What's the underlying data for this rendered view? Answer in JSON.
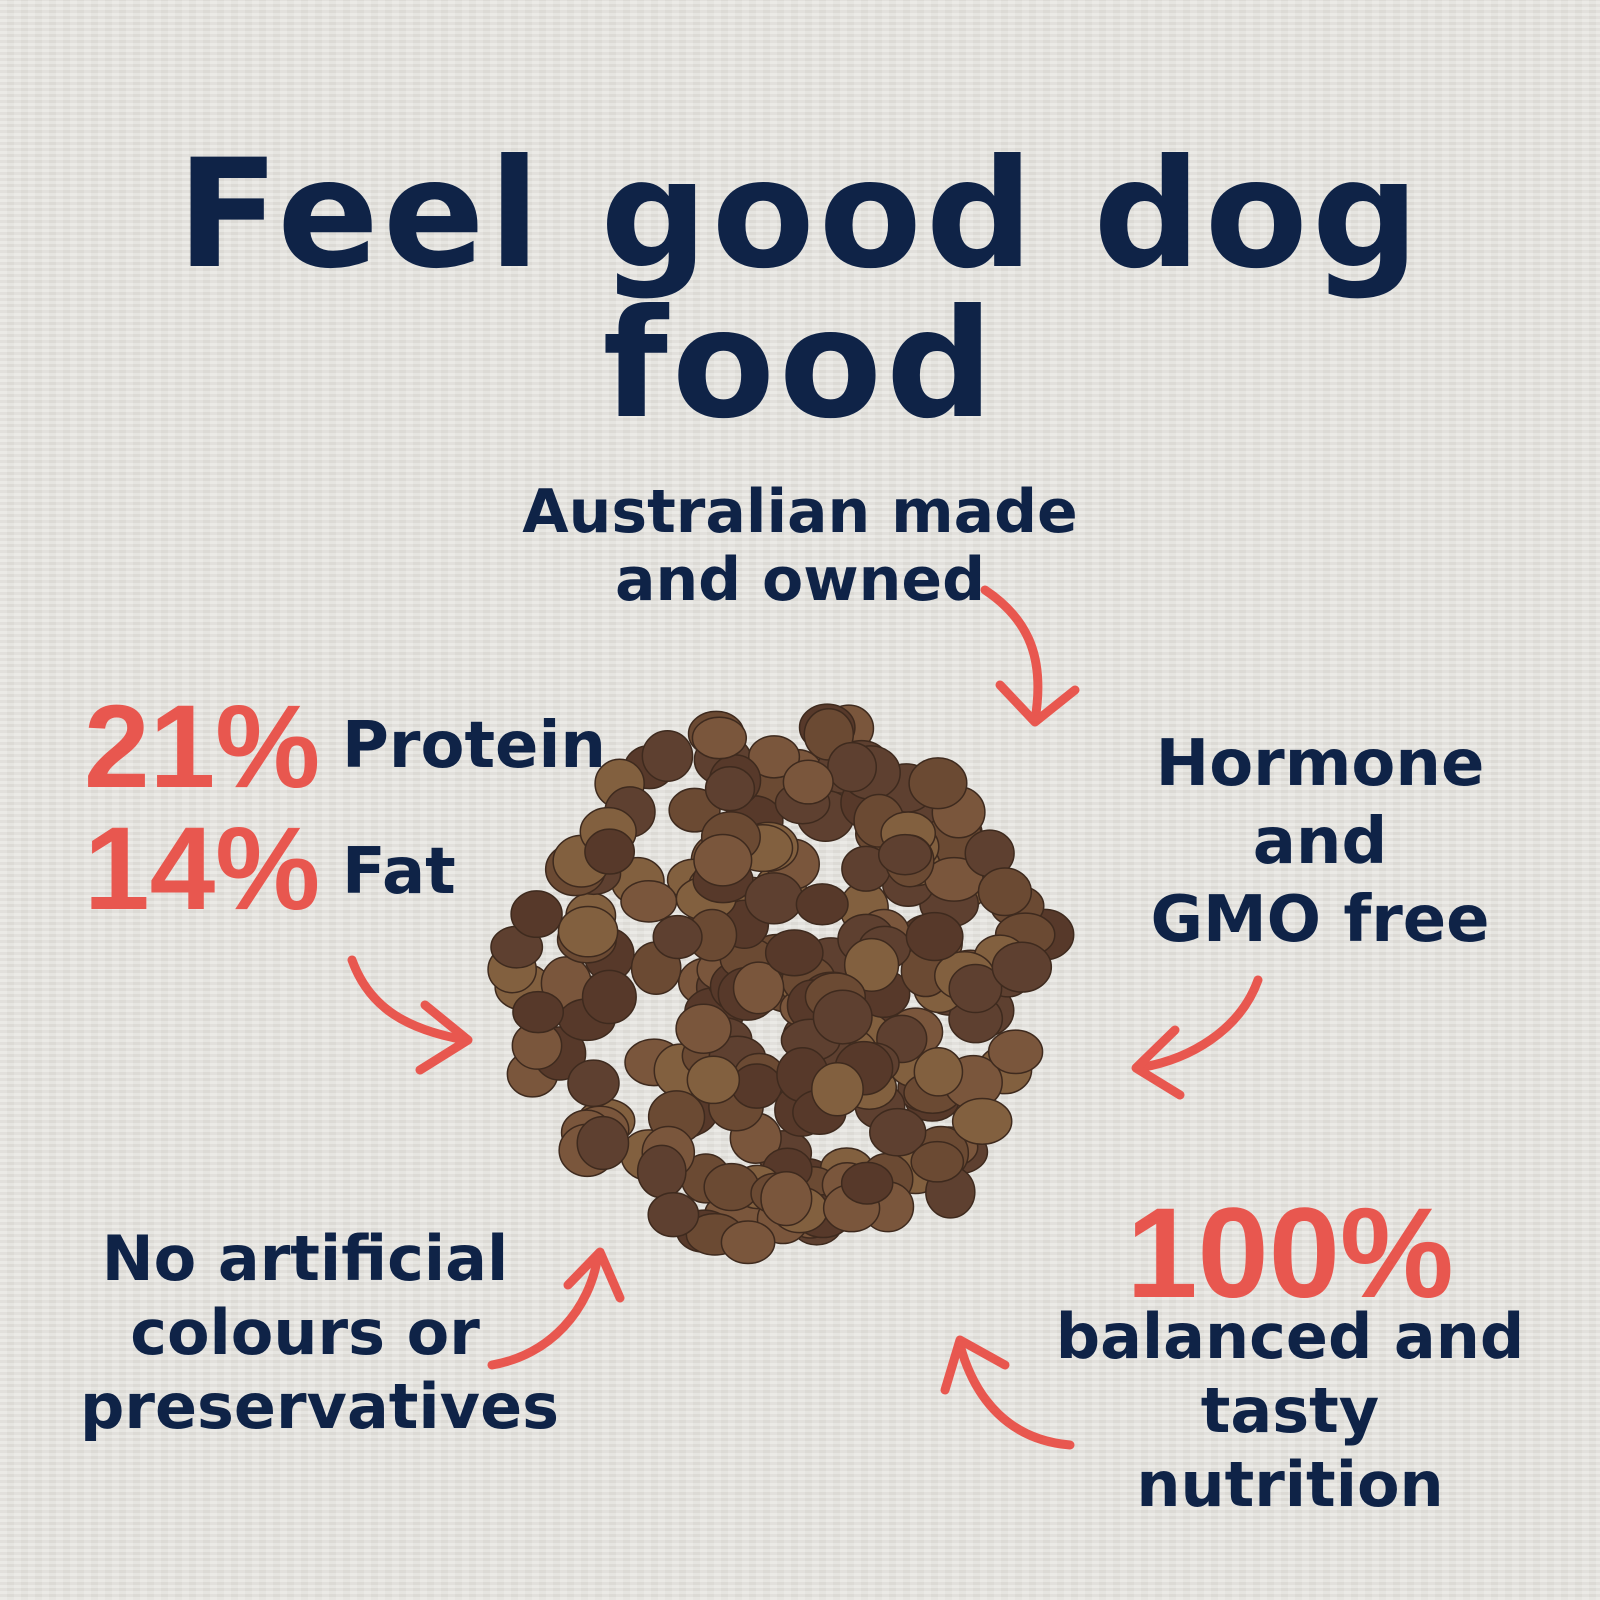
{
  "title": "Feel good dog food",
  "callouts": {
    "australian": [
      "Australian made",
      "and owned"
    ],
    "protein": {
      "value": "21%",
      "label": "Protein"
    },
    "fat": {
      "value": "14%",
      "label": "Fat"
    },
    "hormone": [
      "Hormone",
      "and",
      "GMO free"
    ],
    "artificial": [
      "No artificial",
      "colours or",
      "preservatives"
    ],
    "balanced": {
      "value": "100%",
      "lines": [
        "balanced and",
        "tasty nutrition"
      ]
    }
  },
  "colors": {
    "navy": "#0f2347",
    "coral": "#e8574f",
    "kibble": "#6b4a33",
    "background": "#e5e3de"
  }
}
